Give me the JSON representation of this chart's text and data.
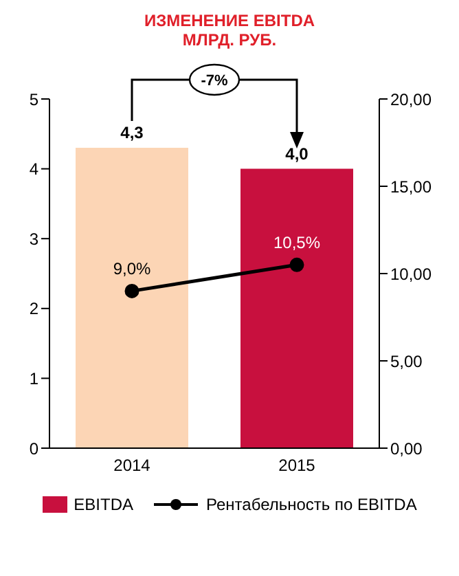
{
  "chart_data": {
    "type": "bar",
    "title": "ИЗМЕНЕНИЕ EBITDA",
    "subtitle": "МЛРД. РУБ.",
    "categories": [
      "2014",
      "2015"
    ],
    "series": [
      {
        "name": "EBITDA",
        "color": "#c8103e",
        "colors": [
          "#fcd5b5",
          "#c8103e"
        ],
        "values": [
          4.3,
          4.0
        ],
        "value_labels": [
          "4,3",
          "4,0"
        ]
      },
      {
        "name": "Рентабельность по EBITDA",
        "type": "line",
        "axis": "y2",
        "color": "#000000",
        "values": [
          9.0,
          10.5
        ],
        "value_labels": [
          "9,0%",
          "10,5%"
        ]
      }
    ],
    "ylim": [
      0,
      5
    ],
    "yticks": [
      0,
      1,
      2,
      3,
      4,
      5
    ],
    "y2lim": [
      0,
      20
    ],
    "y2ticks": [
      {
        "value": 0,
        "label": "0,00"
      },
      {
        "value": 5,
        "label": "5,00"
      },
      {
        "value": 10,
        "label": "10,00"
      },
      {
        "value": 15,
        "label": "15,00"
      },
      {
        "value": 20,
        "label": "20,00"
      }
    ],
    "annotations": [
      "-7%"
    ],
    "legend": "bottom",
    "marker": "circle",
    "line_style": "solid",
    "grid": false
  }
}
